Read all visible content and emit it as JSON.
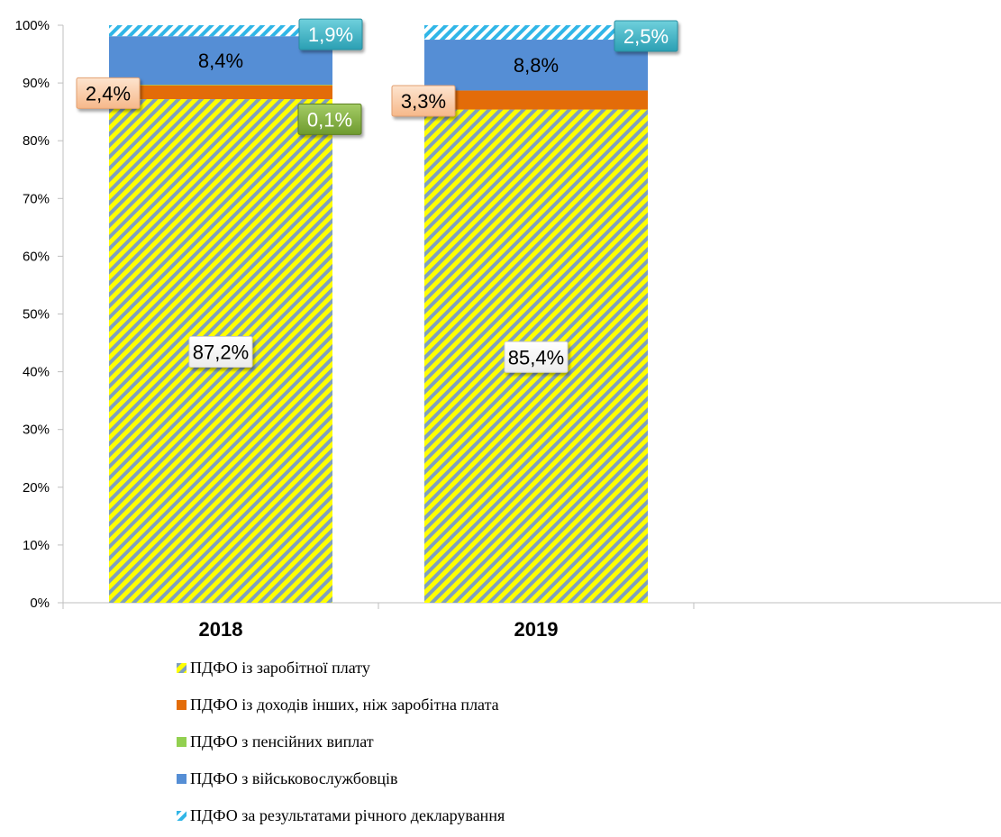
{
  "chart_data": {
    "type": "bar",
    "stacked": true,
    "categories": [
      "2018",
      "2019"
    ],
    "ylim": [
      0,
      100
    ],
    "yticks": [
      "0%",
      "10%",
      "20%",
      "30%",
      "40%",
      "50%",
      "60%",
      "70%",
      "80%",
      "90%",
      "100%"
    ],
    "grid": false,
    "legend_position": "bottom",
    "series": [
      {
        "name": "ПДФО із заробітної плату",
        "values": [
          87.2,
          85.4
        ],
        "labels": [
          "87,2%",
          "85,4%"
        ],
        "color": "#ffff00",
        "stripe": "#7f9fbf",
        "pattern": "diagonal-stripes"
      },
      {
        "name": "ПДФО із доходів інших, ніж заробітна плата",
        "values": [
          2.4,
          3.3
        ],
        "labels": [
          "2,4%",
          "3,3%"
        ],
        "color": "#e36c09",
        "pattern": "solid"
      },
      {
        "name": "ПДФО з пенсійних виплат",
        "values": [
          0.1,
          0.0
        ],
        "labels": [
          "0,1%",
          ""
        ],
        "color": "#92d050",
        "pattern": "solid"
      },
      {
        "name": "ПДФО з військовослужбовців",
        "values": [
          8.4,
          8.8
        ],
        "labels": [
          "8,4%",
          "8,8%"
        ],
        "color": "#558ed5",
        "pattern": "solid"
      },
      {
        "name": "ПДФО за результатами річного декларування",
        "values": [
          1.9,
          2.5
        ],
        "labels": [
          "1,9%",
          "2,5%"
        ],
        "color": "#31b6e7",
        "pattern": "stripes"
      }
    ]
  }
}
